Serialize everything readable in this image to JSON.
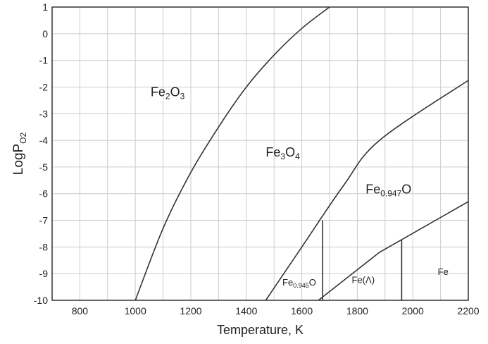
{
  "chart_data": {
    "type": "line",
    "title": "",
    "xlabel": "Temperature, K",
    "ylabel": {
      "main": "LogP",
      "sub": "O2"
    },
    "xlim": [
      700,
      2200
    ],
    "ylim": [
      -10,
      1
    ],
    "xticks": [
      800,
      1000,
      1200,
      1400,
      1600,
      1800,
      2000,
      2200
    ],
    "yticks": [
      1,
      0,
      -1,
      -2,
      -3,
      -4,
      -5,
      -6,
      -7,
      -8,
      -9,
      -10
    ],
    "grid": true,
    "x_minor_step": 100,
    "series": [
      {
        "x": [
          1000,
          1100,
          1200,
          1300,
          1400,
          1500,
          1600,
          1700
        ],
        "y": [
          -10,
          -7.3,
          -5.2,
          -3.5,
          -2.0,
          -0.8,
          0.2,
          1.0
        ]
      },
      {
        "x": [
          1470,
          1600,
          1750,
          1880,
          2200
        ],
        "y": [
          -10,
          -8.0,
          -5.7,
          -4.0,
          -1.75
        ]
      },
      {
        "x": [
          1660,
          1880,
          2200
        ],
        "y": [
          -10,
          -8.2,
          -6.3
        ]
      },
      {
        "x": [
          1675,
          1675
        ],
        "y": [
          -10,
          -7.0
        ]
      },
      {
        "x": [
          1960,
          1960
        ],
        "y": [
          -10,
          -7.75
        ]
      }
    ],
    "annotations": [
      {
        "main": "Fe",
        "sub": "2",
        "main2": "O",
        "sub2": "3",
        "x": 1055,
        "y": -2.35,
        "size": "large"
      },
      {
        "main": "Fe",
        "sub": "3",
        "main2": "O",
        "sub2": "4",
        "x": 1470,
        "y": -4.6,
        "size": "large"
      },
      {
        "main": "Fe",
        "sub": "0.947",
        "main2": "O",
        "sub2": "",
        "x": 1830,
        "y": -6.0,
        "size": "large"
      },
      {
        "main": "Fe",
        "sub": "0.945",
        "main2": "O",
        "sub2": "",
        "x": 1530,
        "y": -9.45,
        "size": "small"
      },
      {
        "main": "Fe(Λ)",
        "sub": "",
        "main2": "",
        "sub2": "",
        "x": 1780,
        "y": -9.35,
        "size": "small"
      },
      {
        "main": "Fe",
        "sub": "",
        "main2": "",
        "sub2": "",
        "x": 2090,
        "y": -9.05,
        "size": "small"
      }
    ]
  }
}
